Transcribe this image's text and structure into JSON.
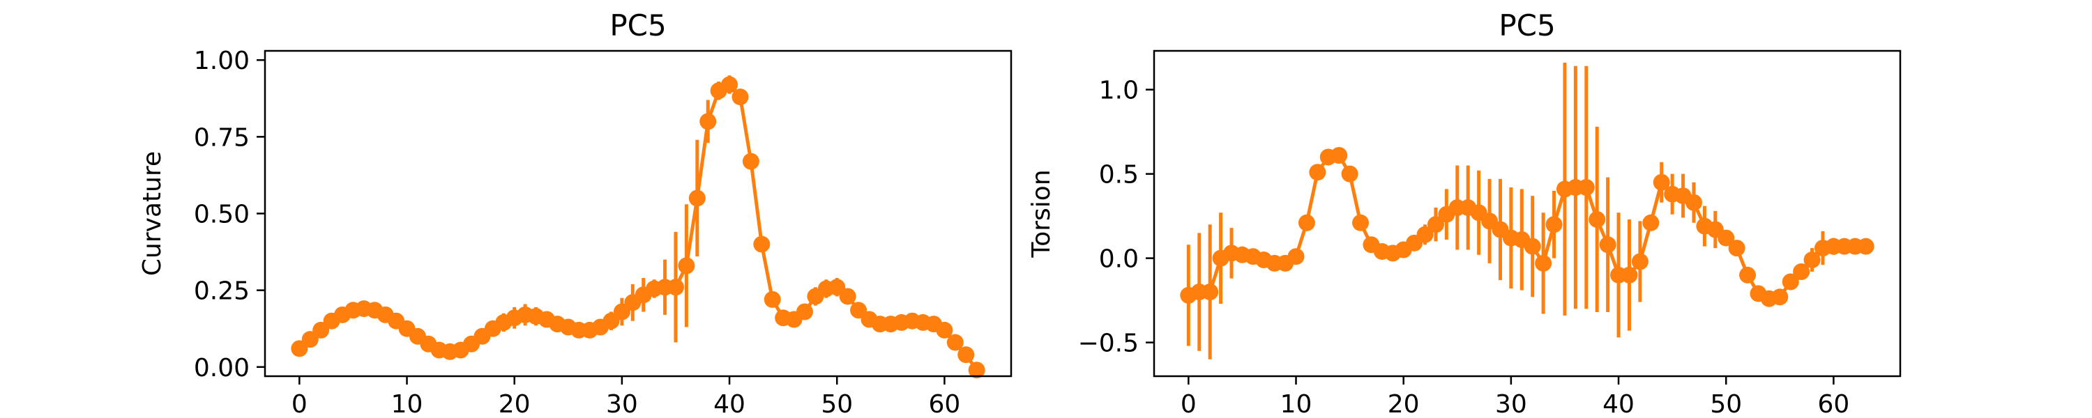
{
  "chart_data": [
    {
      "type": "line",
      "title": "PC5",
      "xlabel": "",
      "ylabel": "Curvature",
      "xlim": [
        -3.2,
        66.2
      ],
      "ylim": [
        -0.03,
        1.03
      ],
      "xticks": [
        0,
        10,
        20,
        30,
        40,
        50,
        60
      ],
      "yticks": [
        0.0,
        0.25,
        0.5,
        0.75,
        1.0
      ],
      "ytick_labels": [
        "0.00",
        "0.25",
        "0.50",
        "0.75",
        "1.00"
      ],
      "grid": false,
      "color": "#ff7f0e",
      "x": [
        0,
        1,
        2,
        3,
        4,
        5,
        6,
        7,
        8,
        9,
        10,
        11,
        12,
        13,
        14,
        15,
        16,
        17,
        18,
        19,
        20,
        21,
        22,
        23,
        24,
        25,
        26,
        27,
        28,
        29,
        30,
        31,
        32,
        33,
        34,
        35,
        36,
        37,
        38,
        39,
        40,
        41,
        42,
        43,
        44,
        45,
        46,
        47,
        48,
        49,
        50,
        51,
        52,
        53,
        54,
        55,
        56,
        57,
        58,
        59,
        60,
        61,
        62,
        63
      ],
      "y": [
        0.06,
        0.09,
        0.12,
        0.15,
        0.17,
        0.185,
        0.19,
        0.185,
        0.17,
        0.15,
        0.125,
        0.1,
        0.075,
        0.055,
        0.05,
        0.055,
        0.075,
        0.1,
        0.125,
        0.145,
        0.16,
        0.17,
        0.165,
        0.155,
        0.14,
        0.13,
        0.12,
        0.12,
        0.13,
        0.15,
        0.18,
        0.21,
        0.235,
        0.255,
        0.26,
        0.26,
        0.33,
        0.55,
        0.8,
        0.9,
        0.92,
        0.88,
        0.67,
        0.4,
        0.22,
        0.16,
        0.155,
        0.18,
        0.23,
        0.255,
        0.26,
        0.23,
        0.185,
        0.155,
        0.14,
        0.14,
        0.145,
        0.15,
        0.145,
        0.14,
        0.12,
        0.08,
        0.04,
        -0.01
      ],
      "yerr": [
        0.01,
        0.01,
        0.01,
        0.01,
        0.01,
        0.01,
        0.01,
        0.01,
        0.01,
        0.01,
        0.01,
        0.01,
        0.01,
        0.01,
        0.01,
        0.01,
        0.01,
        0.015,
        0.02,
        0.03,
        0.035,
        0.035,
        0.03,
        0.025,
        0.02,
        0.02,
        0.025,
        0.02,
        0.02,
        0.03,
        0.045,
        0.06,
        0.055,
        0.03,
        0.09,
        0.18,
        0.2,
        0.19,
        0.07,
        0.03,
        0.03,
        0.02,
        0.02,
        0.02,
        0.02,
        0.01,
        0.01,
        0.02,
        0.03,
        0.03,
        0.03,
        0.02,
        0.01,
        0.01,
        0.01,
        0.01,
        0.01,
        0.01,
        0.01,
        0.01,
        0.01,
        0.01,
        0.01,
        0.01
      ]
    },
    {
      "type": "line",
      "title": "PC5",
      "xlabel": "",
      "ylabel": "Torsion",
      "xlim": [
        -3.2,
        66.2
      ],
      "ylim": [
        -0.7,
        1.23
      ],
      "xticks": [
        0,
        10,
        20,
        30,
        40,
        50,
        60
      ],
      "yticks": [
        -0.5,
        0.0,
        0.5,
        1.0
      ],
      "ytick_labels": [
        "−0.5",
        "0.0",
        "0.5",
        "1.0"
      ],
      "grid": false,
      "color": "#ff7f0e",
      "x": [
        0,
        1,
        2,
        3,
        4,
        5,
        6,
        7,
        8,
        9,
        10,
        11,
        12,
        13,
        14,
        15,
        16,
        17,
        18,
        19,
        20,
        21,
        22,
        23,
        24,
        25,
        26,
        27,
        28,
        29,
        30,
        31,
        32,
        33,
        34,
        35,
        36,
        37,
        38,
        39,
        40,
        41,
        42,
        43,
        44,
        45,
        46,
        47,
        48,
        49,
        50,
        51,
        52,
        53,
        54,
        55,
        56,
        57,
        58,
        59,
        60,
        61,
        62,
        63
      ],
      "y": [
        -0.22,
        -0.2,
        -0.2,
        0.0,
        0.03,
        0.02,
        0.01,
        -0.01,
        -0.03,
        -0.03,
        0.01,
        0.21,
        0.51,
        0.6,
        0.61,
        0.5,
        0.21,
        0.08,
        0.04,
        0.03,
        0.05,
        0.09,
        0.14,
        0.2,
        0.26,
        0.3,
        0.3,
        0.27,
        0.22,
        0.17,
        0.12,
        0.11,
        0.07,
        -0.03,
        0.2,
        0.41,
        0.42,
        0.42,
        0.23,
        0.08,
        -0.1,
        -0.1,
        -0.02,
        0.21,
        0.45,
        0.38,
        0.37,
        0.33,
        0.19,
        0.17,
        0.12,
        0.06,
        -0.1,
        -0.21,
        -0.24,
        -0.23,
        -0.14,
        -0.08,
        -0.01,
        0.06,
        0.07,
        0.07,
        0.07,
        0.07
      ],
      "yerr": [
        0.3,
        0.35,
        0.4,
        0.27,
        0.15,
        0.02,
        0.02,
        0.02,
        0.02,
        0.02,
        0.02,
        0.02,
        0.02,
        0.02,
        0.02,
        0.02,
        0.02,
        0.02,
        0.02,
        0.02,
        0.02,
        0.02,
        0.06,
        0.1,
        0.15,
        0.25,
        0.25,
        0.25,
        0.25,
        0.3,
        0.3,
        0.3,
        0.3,
        0.3,
        0.2,
        0.75,
        0.72,
        0.72,
        0.55,
        0.4,
        0.37,
        0.33,
        0.24,
        0.04,
        0.12,
        0.12,
        0.13,
        0.12,
        0.12,
        0.11,
        0.04,
        0.02,
        0.02,
        0.02,
        0.02,
        0.02,
        0.02,
        0.04,
        0.07,
        0.1,
        0.05,
        0.03,
        0.02,
        0.02
      ]
    }
  ]
}
